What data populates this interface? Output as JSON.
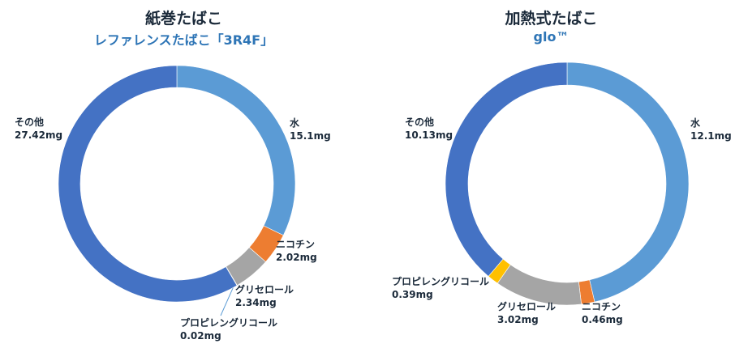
{
  "colors": {
    "water": "#5b9bd5",
    "nicotine": "#ed7d31",
    "glycerol": "#a5a5a5",
    "propylene_glycol": "#ffc000",
    "other": "#4472c4",
    "title_text": "#1b2a3a",
    "subtitle_text": "#2e75b6"
  },
  "chart_data": [
    {
      "type": "pie",
      "title": "紙巻たばこ",
      "subtitle": "レファレンスたばこ「3R4F」",
      "slices": [
        {
          "label": "水",
          "value": 15.1,
          "value_text": "15.1mg",
          "color": "#5b9bd5"
        },
        {
          "label": "ニコチン",
          "value": 2.02,
          "value_text": "2.02mg",
          "color": "#ed7d31"
        },
        {
          "label": "グリセロール",
          "value": 2.34,
          "value_text": "2.34mg",
          "color": "#a5a5a5"
        },
        {
          "label": "プロピレングリコール",
          "value": 0.02,
          "value_text": "0.02mg",
          "color": "#ffc000"
        },
        {
          "label": "その他",
          "value": 27.42,
          "value_text": "27.42mg",
          "color": "#4472c4"
        }
      ]
    },
    {
      "type": "pie",
      "title": "加熱式たばこ",
      "subtitle": "glo™",
      "slices": [
        {
          "label": "水",
          "value": 12.1,
          "value_text": "12.1mg",
          "color": "#5b9bd5"
        },
        {
          "label": "ニコチン",
          "value": 0.46,
          "value_text": "0.46mg",
          "color": "#ed7d31"
        },
        {
          "label": "グリセロール",
          "value": 3.02,
          "value_text": "3.02mg",
          "color": "#a5a5a5"
        },
        {
          "label": "プロピレングリコール",
          "value": 0.39,
          "value_text": "0.39mg",
          "color": "#ffc000"
        },
        {
          "label": "その他",
          "value": 10.13,
          "value_text": "10.13mg",
          "color": "#4472c4"
        }
      ]
    }
  ]
}
